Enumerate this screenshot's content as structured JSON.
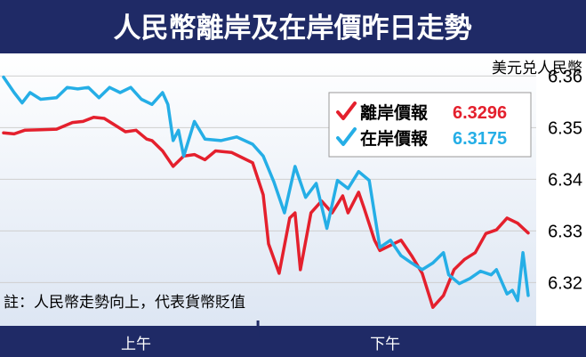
{
  "title": "人民幣離岸及在岸價昨日走勢",
  "colors": {
    "title_bg": "#1f2a66",
    "plot_bg_top": "#ffffff",
    "plot_bg_bottom": "#dde6f3",
    "axis_bar": "#1f2a66",
    "offshore": "#e4202d",
    "onshore": "#25aee6",
    "grid": "#cfcfcf"
  },
  "chart_data": {
    "type": "line",
    "unit_label": "美元兑人民幣",
    "ylim": [
      6.313,
      6.363
    ],
    "yticks": [
      6.32,
      6.33,
      6.34,
      6.35,
      6.36
    ],
    "ytick_labels": [
      "6.32",
      "6.33",
      "6.34",
      "6.35",
      "6.36"
    ],
    "grid": true,
    "legend_position": "top-right",
    "x_sessions": [
      {
        "label": "上午",
        "center": 0.25
      },
      {
        "label": "下午",
        "center": 0.72
      }
    ],
    "x_session_split": 0.48,
    "series": [
      {
        "name": "離岸價報",
        "last_value": "6.3296",
        "color": "#e4202d",
        "x": [
          0,
          0.02,
          0.04,
          0.07,
          0.1,
          0.13,
          0.15,
          0.17,
          0.19,
          0.21,
          0.23,
          0.25,
          0.27,
          0.28,
          0.3,
          0.32,
          0.34,
          0.36,
          0.38,
          0.4,
          0.43,
          0.45,
          0.47,
          0.49,
          0.5,
          0.52,
          0.54,
          0.55,
          0.56,
          0.58,
          0.6,
          0.62,
          0.64,
          0.65,
          0.67,
          0.68,
          0.7,
          0.71,
          0.73,
          0.75,
          0.77,
          0.79,
          0.81,
          0.83,
          0.85,
          0.87,
          0.89,
          0.91,
          0.93,
          0.95,
          0.97,
          0.99
        ],
        "y": [
          6.349,
          6.3488,
          6.3495,
          6.3496,
          6.3497,
          6.351,
          6.3512,
          6.352,
          6.3518,
          6.3505,
          6.3492,
          6.3495,
          6.3478,
          6.3475,
          6.3455,
          6.3425,
          6.3445,
          6.3448,
          6.3438,
          6.3455,
          6.3452,
          6.3442,
          6.3432,
          6.337,
          6.3275,
          6.3218,
          6.3325,
          6.3335,
          6.3225,
          6.3335,
          6.3358,
          6.3335,
          6.3368,
          6.3335,
          6.3375,
          6.3345,
          6.3282,
          6.3262,
          6.3272,
          6.3282,
          6.3252,
          6.3218,
          6.3152,
          6.3175,
          6.3225,
          6.3245,
          6.3258,
          6.3295,
          6.3302,
          6.3325,
          6.3315,
          6.3296
        ]
      },
      {
        "name": "在岸價報",
        "last_value": "6.3175",
        "color": "#25aee6",
        "x": [
          0,
          0.02,
          0.035,
          0.05,
          0.07,
          0.1,
          0.12,
          0.14,
          0.16,
          0.18,
          0.2,
          0.22,
          0.24,
          0.26,
          0.28,
          0.3,
          0.31,
          0.32,
          0.33,
          0.34,
          0.36,
          0.38,
          0.41,
          0.44,
          0.47,
          0.49,
          0.51,
          0.53,
          0.55,
          0.57,
          0.59,
          0.61,
          0.63,
          0.65,
          0.67,
          0.69,
          0.71,
          0.73,
          0.75,
          0.77,
          0.79,
          0.81,
          0.83,
          0.84,
          0.86,
          0.88,
          0.9,
          0.92,
          0.93,
          0.95,
          0.96,
          0.97,
          0.98,
          0.99
        ],
        "y": [
          6.3598,
          6.3568,
          6.3548,
          6.3568,
          6.3555,
          6.3558,
          6.3578,
          6.3575,
          6.3578,
          6.3558,
          6.3578,
          6.3568,
          6.3578,
          6.3555,
          6.3545,
          6.3568,
          6.3545,
          6.3475,
          6.3495,
          6.3445,
          6.3512,
          6.3478,
          6.3475,
          6.3482,
          6.3468,
          6.3445,
          6.3395,
          6.3335,
          6.3425,
          6.3365,
          6.3392,
          6.3305,
          6.3398,
          6.3382,
          6.3415,
          6.3398,
          6.3268,
          6.3282,
          6.3252,
          6.3238,
          6.3225,
          6.3238,
          6.3258,
          6.3215,
          6.3198,
          6.3208,
          6.3222,
          6.3215,
          6.3225,
          6.3178,
          6.3185,
          6.3165,
          6.3258,
          6.3175
        ]
      }
    ]
  },
  "note": "註：人民幣走勢向上，代表貨幣貶值"
}
